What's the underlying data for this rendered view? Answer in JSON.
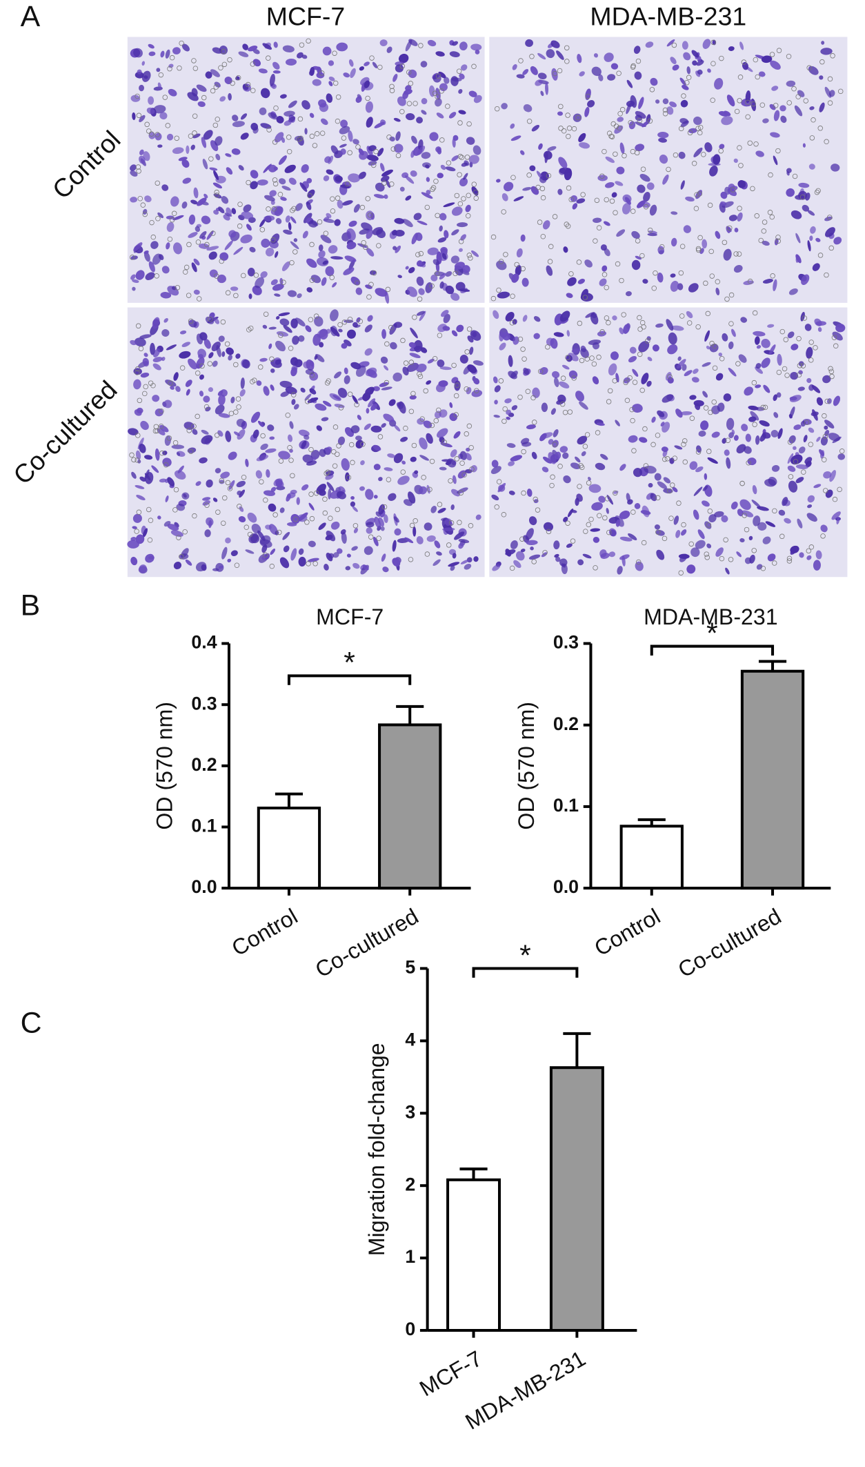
{
  "panel_labels": [
    "A",
    "B",
    "C"
  ],
  "micrographs": {
    "columns": [
      "MCF-7",
      "MDA-MB-231"
    ],
    "rows": [
      "Control",
      "Co-cultured"
    ]
  },
  "chart_data": [
    {
      "type": "bar",
      "title": "MCF-7",
      "y_label": "OD (570 nm)",
      "categories": [
        "Control",
        "Co-cultured"
      ],
      "values": [
        0.131,
        0.267
      ],
      "errors": [
        0.023,
        0.03
      ],
      "colors": [
        "#ffffff",
        "#999999"
      ],
      "ylim": [
        0,
        0.4
      ],
      "yticks": [
        {
          "value": 0,
          "label": "0.0"
        },
        0.1,
        0.2,
        0.3,
        0.4
      ],
      "annotation": "*"
    },
    {
      "type": "bar",
      "title": "MDA-MB-231",
      "y_label": "OD (570 nm)",
      "categories": [
        "Control",
        "Co-cultured"
      ],
      "values": [
        0.076,
        0.266
      ],
      "errors": [
        0.008,
        0.012
      ],
      "colors": [
        "#ffffff",
        "#999999"
      ],
      "ylim": [
        0,
        0.3
      ],
      "yticks": [
        {
          "value": 0,
          "label": "0.0"
        },
        0.1,
        0.2,
        0.3
      ],
      "annotation": "*"
    },
    {
      "type": "bar",
      "y_label": "Migration fold-change",
      "categories": [
        "MCF-7",
        "MDA-MB-231"
      ],
      "values": [
        2.08,
        3.63
      ],
      "errors": [
        0.15,
        0.47
      ],
      "colors": [
        "#ffffff",
        "#999999"
      ],
      "ylim": [
        0,
        5
      ],
      "yticks": [
        0,
        1,
        2,
        3,
        4,
        5
      ],
      "annotation": "*"
    }
  ]
}
